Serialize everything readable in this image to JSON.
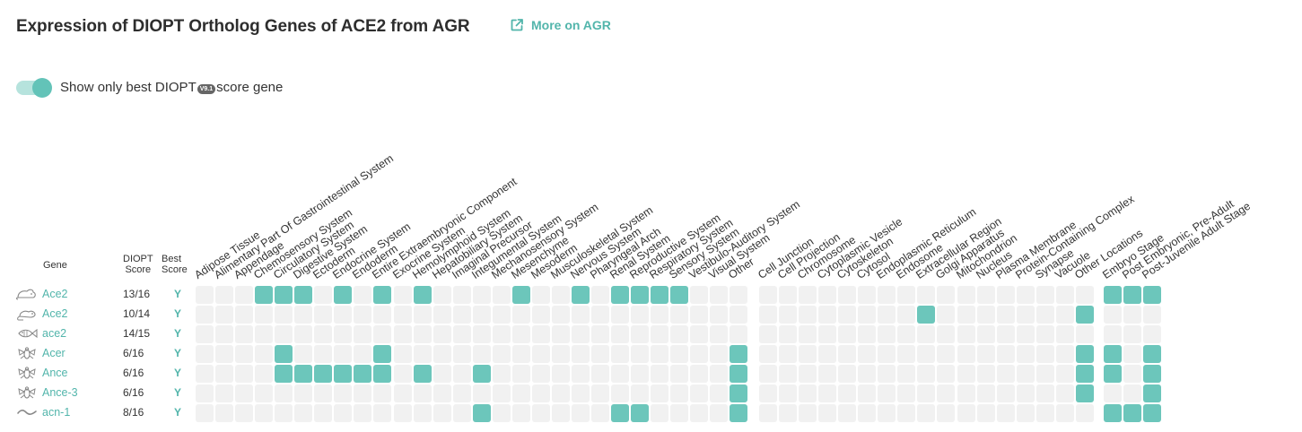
{
  "header": {
    "title": "Expression of DIOPT Ortholog Genes of ACE2 from AGR",
    "more_link": "More on AGR",
    "more_icon": "external-link-icon"
  },
  "toggle": {
    "on": true,
    "label_before": "Show only best DIOPT",
    "badge": "V9.1",
    "label_after": "score gene"
  },
  "table": {
    "gene_header": "Gene",
    "score_header_line1": "DIOPT",
    "score_header_line2": "Score",
    "best_header_line1": "Best",
    "best_header_line2": "Score",
    "group1": [
      "Adipose Tissue",
      "Alimentary Part Of Gastrointestinal System",
      "Appendage",
      "Chemosensory System",
      "Circulatory System",
      "Digestive System",
      "Ectoderm",
      "Endocrine System",
      "Endoderm",
      "Entire Extraembryonic Component",
      "Exocrine System",
      "Hemolymphoid System",
      "Hepatobiliary System",
      "Imaginal Precursor",
      "Integumental System",
      "Mechanosensory System",
      "Mesenchyme",
      "Mesoderm",
      "Musculoskeletal System",
      "Nervous System",
      "Pharyngeal Arch",
      "Renal System",
      "Reproductive System",
      "Respiratory System",
      "Sensory System",
      "Vestibulo-Auditory System",
      "Visual System",
      "Other"
    ],
    "group2": [
      "Cell Junction",
      "Cell Projection",
      "Chromosome",
      "Cytoplasmic Vesicle",
      "Cytoskeleton",
      "Cytosol",
      "Endoplasmic Reticulum",
      "Endosome",
      "Extracellular Region",
      "Golgi Apparatus",
      "Mitochondrion",
      "Nucleus",
      "Plasma Membrane",
      "Protein-Containing Complex",
      "Synapse",
      "Vacuole",
      "Other Locations"
    ],
    "group3": [
      "Embryo Stage",
      "Post Embryonic, Pre-Adult",
      "Post-Juvenile Adult Stage"
    ],
    "rows": [
      {
        "species_icon": "mouse-icon",
        "gene": "Ace2",
        "score": "13/16",
        "best": "Y",
        "g1": [
          3,
          4,
          5,
          7,
          9,
          11,
          16,
          19,
          21,
          22,
          23,
          24
        ],
        "g2": [],
        "g3": [
          0,
          1,
          2
        ]
      },
      {
        "species_icon": "rat-icon",
        "gene": "Ace2",
        "score": "10/14",
        "best": "Y",
        "g1": [],
        "g2": [
          8,
          16
        ],
        "g3": []
      },
      {
        "species_icon": "zebrafish-icon",
        "gene": "ace2",
        "score": "14/15",
        "best": "Y",
        "g1": [],
        "g2": [],
        "g3": []
      },
      {
        "species_icon": "fly-icon",
        "gene": "Acer",
        "score": "6/16",
        "best": "Y",
        "g1": [
          4,
          9,
          27
        ],
        "g2": [
          16
        ],
        "g3": [
          0,
          2
        ]
      },
      {
        "species_icon": "fly-icon",
        "gene": "Ance",
        "score": "6/16",
        "best": "Y",
        "g1": [
          4,
          5,
          6,
          7,
          8,
          9,
          11,
          14,
          27
        ],
        "g2": [
          16
        ],
        "g3": [
          0,
          2
        ]
      },
      {
        "species_icon": "fly-icon",
        "gene": "Ance-3",
        "score": "6/16",
        "best": "Y",
        "g1": [
          27
        ],
        "g2": [
          16
        ],
        "g3": [
          2
        ]
      },
      {
        "species_icon": "worm-icon",
        "gene": "acn-1",
        "score": "8/16",
        "best": "Y",
        "g1": [
          14,
          21,
          22,
          27
        ],
        "g2": [],
        "g3": [
          0,
          1,
          2
        ]
      }
    ]
  },
  "colors": {
    "accent": "#52b5ab",
    "cell_on": "#6cc6bb",
    "cell_off": "#f1f1f1"
  }
}
